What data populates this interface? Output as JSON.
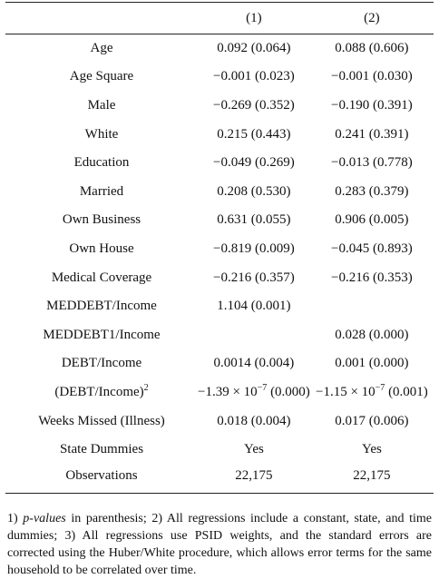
{
  "table": {
    "header": {
      "col1": "(1)",
      "col2": "(2)"
    },
    "rows": [
      [
        "Age",
        "0.092 (0.064)",
        "0.088 (0.606)"
      ],
      [
        "Age Square",
        "−0.001 (0.023)",
        "−0.001 (0.030)"
      ],
      [
        "Male",
        "−0.269 (0.352)",
        "−0.190 (0.391)"
      ],
      [
        "White",
        "0.215 (0.443)",
        "0.241 (0.391)"
      ],
      [
        "Education",
        "−0.049 (0.269)",
        "−0.013 (0.778)"
      ],
      [
        "Married",
        "0.208 (0.530)",
        "0.283 (0.379)"
      ],
      [
        "Own Business",
        "0.631 (0.055)",
        "0.906 (0.005)"
      ],
      [
        "Own House",
        "−0.819 (0.009)",
        "−0.045 (0.893)"
      ],
      [
        "Medical Coverage",
        "−0.216 (0.357)",
        "−0.216 (0.353)"
      ],
      [
        "MEDDEBT/Income",
        "1.104 (0.001)",
        null
      ],
      [
        "MEDDEBT1/Income",
        null,
        "0.028 (0.000)"
      ],
      [
        "DEBT/Income",
        "0.0014 (0.004)",
        "0.001 (0.000)"
      ],
      [
        {
          "base": "(DEBT/Income)",
          "sup": "2"
        },
        {
          "base": "−1.39 × 10",
          "sup": "−7",
          "rest": " (0.000)"
        },
        {
          "base": "−1.15 × 10",
          "sup": "−7",
          "rest": " (0.001)"
        }
      ],
      [
        "Weeks Missed (Illness)",
        "0.018 (0.004)",
        "0.017 (0.006)"
      ],
      [
        "State Dummies",
        "Yes",
        "Yes"
      ],
      [
        "Observations",
        "22,175",
        "22,175"
      ]
    ]
  },
  "footnote": {
    "prefix": "1) ",
    "italic": "p-values",
    "rest": " in parenthesis; 2) All regressions include a constant, state, and time dummies; 3) All regressions use PSID weights, and the standard errors are corrected using the Huber/White procedure, which allows error terms for the same household to be correlated over time."
  }
}
